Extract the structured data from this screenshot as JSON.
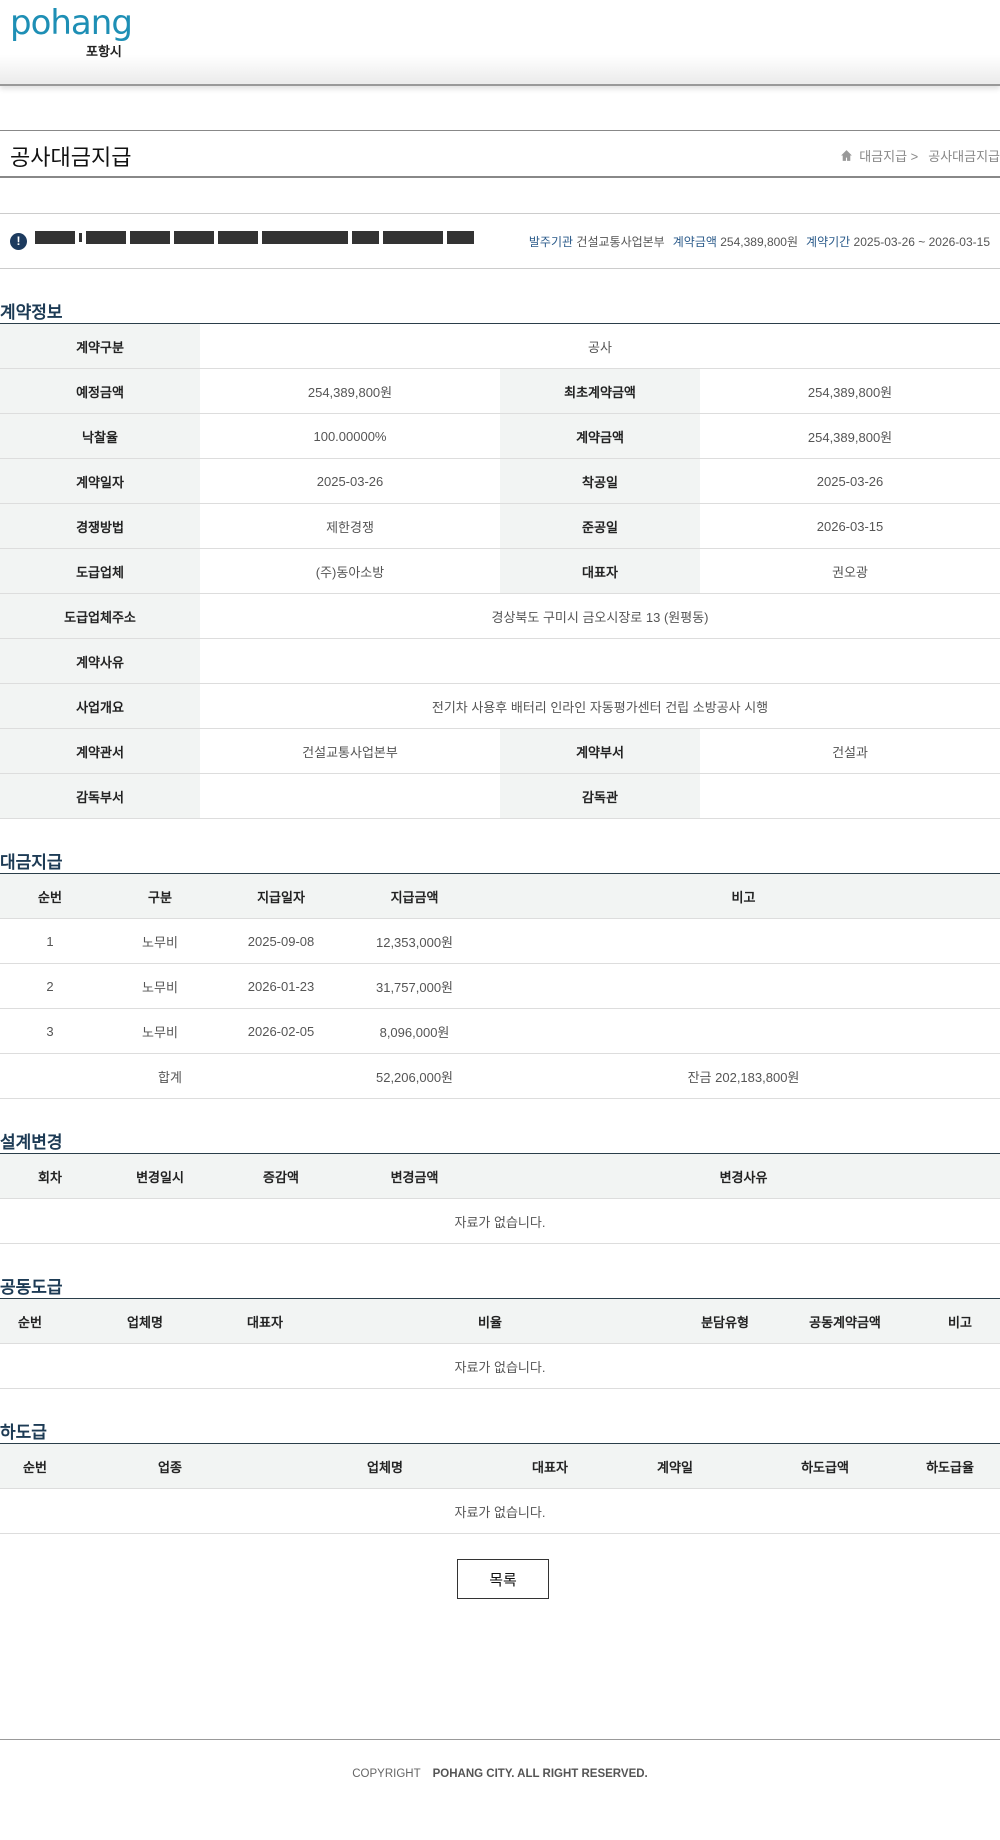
{
  "header": {
    "logo_en": "pohang",
    "logo_ko": "포항시"
  },
  "page": {
    "title": "공사대금지급",
    "breadcrumb": [
      "대금지급 >",
      "공사대금지급"
    ]
  },
  "summary": {
    "meta": [
      {
        "k": "발주기관",
        "v": "건설교통사업본부"
      },
      {
        "k": "계약금액",
        "v": "254,389,800원"
      },
      {
        "k": "계약기간",
        "v": "2025-03-26 ~ 2026-03-15"
      }
    ]
  },
  "contract": {
    "title": "계약정보",
    "rows": [
      [
        {
          "k": "계약구분",
          "v": "공사"
        }
      ],
      [
        {
          "k": "예정금액",
          "v": "254,389,800원"
        },
        {
          "k": "최초계약금액",
          "v": "254,389,800원"
        }
      ],
      [
        {
          "k": "낙찰율",
          "v": "100.00000%"
        },
        {
          "k": "계약금액",
          "v": "254,389,800원"
        }
      ],
      [
        {
          "k": "계약일자",
          "v": "2025-03-26"
        },
        {
          "k": "착공일",
          "v": "2025-03-26"
        }
      ],
      [
        {
          "k": "경쟁방법",
          "v": "제한경쟁"
        },
        {
          "k": "준공일",
          "v": "2026-03-15"
        }
      ],
      [
        {
          "k": "도급업체",
          "v": "(주)동아소방"
        },
        {
          "k": "대표자",
          "v": "권오광"
        }
      ],
      [
        {
          "k": "도급업체주소",
          "v": "경상북도 구미시 금오시장로 13 (원평동)"
        }
      ],
      [
        {
          "k": "계약사유",
          "v": ""
        }
      ],
      [
        {
          "k": "사업개요",
          "v": "전기차 사용후 배터리 인라인 자동평가센터 건립 소방공사 시행"
        }
      ],
      [
        {
          "k": "계약관서",
          "v": "건설교통사업본부"
        },
        {
          "k": "계약부서",
          "v": "건설과"
        }
      ],
      [
        {
          "k": "감독부서",
          "v": ""
        },
        {
          "k": "감독관",
          "v": ""
        }
      ]
    ]
  },
  "payment": {
    "title": "대금지급",
    "headers": [
      "순번",
      "구분",
      "지급일자",
      "지급금액",
      "비고"
    ],
    "rows": [
      [
        "1",
        "노무비",
        "2025-09-08",
        "12,353,000원",
        ""
      ],
      [
        "2",
        "노무비",
        "2026-01-23",
        "31,757,000원",
        ""
      ],
      [
        "3",
        "노무비",
        "2026-02-05",
        "8,096,000원",
        ""
      ]
    ],
    "total": {
      "label": "합계",
      "amount": "52,206,000원",
      "balance": "잔금 202,183,800원"
    }
  },
  "design": {
    "title": "설계변경",
    "headers": [
      "회차",
      "변경일시",
      "증감액",
      "변경금액",
      "변경사유"
    ],
    "empty": "자료가 없습니다."
  },
  "joint": {
    "title": "공동도급",
    "headers": [
      "순번",
      "업체명",
      "대표자",
      "비율",
      "분담유형",
      "공동계약금액",
      "비고"
    ],
    "empty": "자료가 없습니다."
  },
  "sub": {
    "title": "하도급",
    "headers": [
      "순번",
      "업종",
      "업체명",
      "대표자",
      "계약일",
      "하도급액",
      "하도급율"
    ],
    "empty": "자료가 없습니다."
  },
  "list_button": "목록",
  "footer": {
    "copyright": "COPYRIGHT",
    "owner": "POHANG CITY. ALL RIGHT RESERVED."
  }
}
